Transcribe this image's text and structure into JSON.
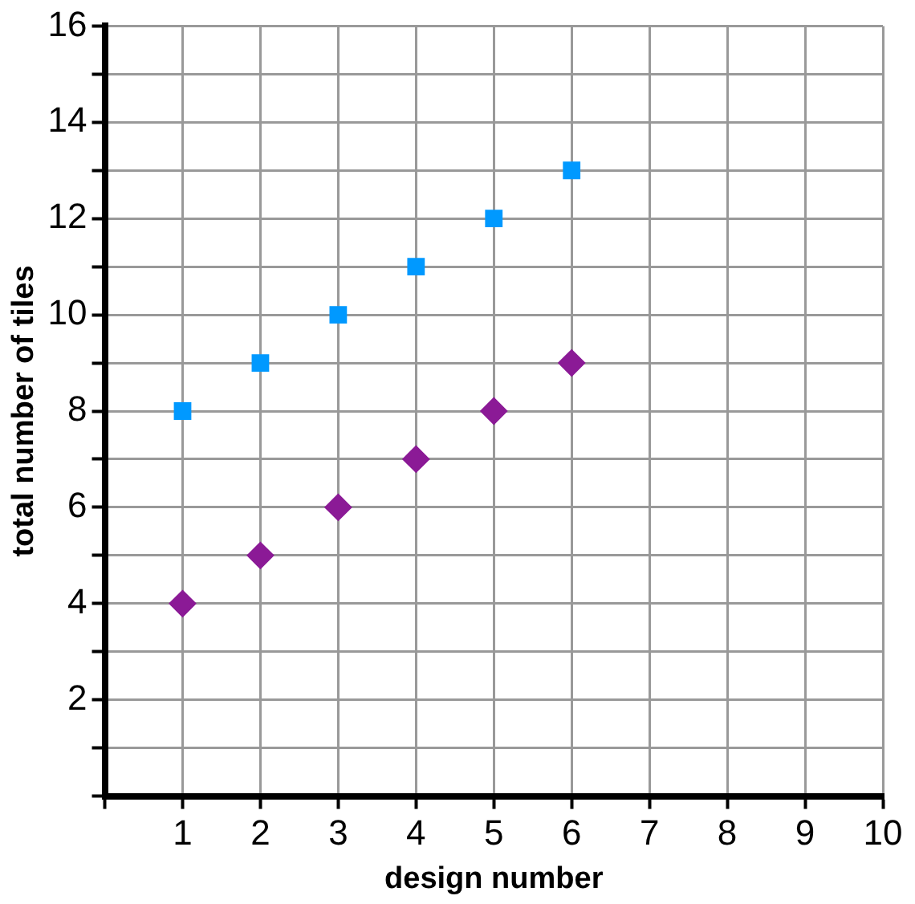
{
  "chart_data": {
    "type": "scatter",
    "xlabel": "design number",
    "ylabel": "total number of tiles",
    "series": [
      {
        "color": "#0099ff",
        "marker": "square",
        "x": [
          1,
          2,
          3,
          4,
          5,
          6
        ],
        "values": [
          8,
          9,
          10,
          11,
          12,
          13
        ]
      },
      {
        "color": "#8b1a96",
        "marker": "diamond",
        "x": [
          1,
          2,
          3,
          4,
          5,
          6
        ],
        "values": [
          4,
          5,
          6,
          7,
          8,
          9
        ]
      }
    ],
    "xlim": [
      0,
      10
    ],
    "ylim": [
      0,
      16
    ],
    "xticks": [
      {
        "value": 0,
        "label": null
      },
      1,
      2,
      3,
      4,
      5,
      6,
      7,
      8,
      9,
      10
    ],
    "yticks": [
      {
        "value": 0,
        "label": null
      },
      {
        "value": 1,
        "label": null
      },
      2,
      {
        "value": 3,
        "label": null
      },
      4,
      {
        "value": 5,
        "label": null
      },
      6,
      {
        "value": 7,
        "label": null
      },
      8,
      {
        "value": 9,
        "label": null
      },
      10,
      {
        "value": 11,
        "label": null
      },
      12,
      {
        "value": 13,
        "label": null
      },
      14,
      {
        "value": 15,
        "label": null
      },
      16
    ],
    "grid": true,
    "legend": false
  }
}
